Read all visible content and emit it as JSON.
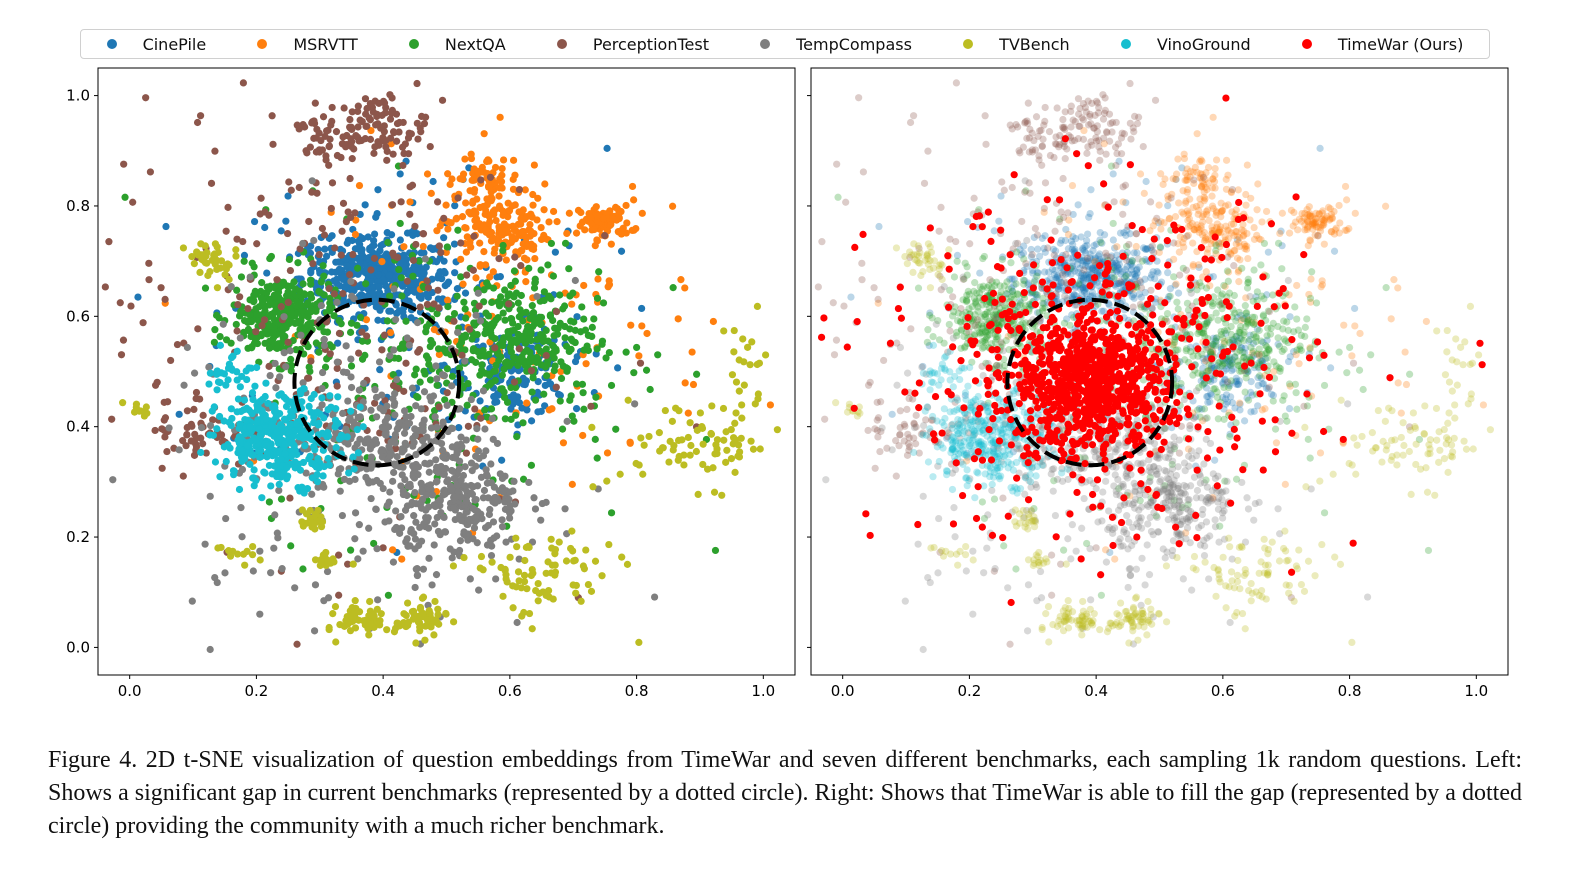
{
  "legend": [
    "CinePile",
    "MSRVTT",
    "NextQA",
    "PerceptionTest",
    "TempCompass",
    "TVBench",
    "VinoGround",
    "TimeWar (Ours)"
  ],
  "caption": "Figure 4.  2D t-SNE visualization of question embeddings from TimeWar and seven different benchmarks, each sampling 1k random questions. Left: Shows a significant gap in current benchmarks (represented by a dotted circle). Right: Shows that TimeWar is able to fill the gap (represented by a dotted circle) providing the community with a much richer benchmark.",
  "chart_data": [
    {
      "type": "scatter",
      "panel": "left",
      "xlim": [
        -0.05,
        1.05
      ],
      "ylim": [
        -0.05,
        1.05
      ],
      "xticks": [
        "0.0",
        "0.2",
        "0.4",
        "0.6",
        "0.8",
        "1.0"
      ],
      "yticks": [
        "0.0",
        "0.2",
        "0.4",
        "0.6",
        "0.8",
        "1.0"
      ],
      "grid": false,
      "legend_placement": "top",
      "annotation": {
        "shape": "dashed circle",
        "center": [
          0.39,
          0.48
        ],
        "radius_x": 0.13,
        "radius_y": 0.15,
        "color": "#000000"
      },
      "series_shown": [
        "CinePile",
        "MSRVTT",
        "NextQA",
        "PerceptionTest",
        "TempCompass",
        "TVBench",
        "VinoGround"
      ]
    },
    {
      "type": "scatter",
      "panel": "right",
      "xlim": [
        -0.05,
        1.05
      ],
      "ylim": [
        -0.05,
        1.05
      ],
      "xticks": [
        "0.0",
        "0.2",
        "0.4",
        "0.6",
        "0.8",
        "1.0"
      ],
      "yticks": [],
      "grid": false,
      "annotation": {
        "shape": "dashed circle",
        "center": [
          0.39,
          0.48
        ],
        "radius_x": 0.13,
        "radius_y": 0.15,
        "color": "#000000"
      },
      "series_shown": [
        "CinePile",
        "MSRVTT",
        "NextQA",
        "PerceptionTest",
        "TempCompass",
        "TVBench",
        "VinoGround",
        "TimeWar (Ours)"
      ],
      "faded_series_opacity": 0.3
    }
  ],
  "series": [
    {
      "name": "CinePile",
      "color": "#1f77b4",
      "clusters": [
        [
          0.39,
          0.67,
          0.06,
          0.035,
          420
        ],
        [
          0.61,
          0.5,
          0.04,
          0.04,
          150
        ],
        [
          0.45,
          0.6,
          0.15,
          0.15,
          150
        ]
      ]
    },
    {
      "name": "MSRVTT",
      "color": "#ff7f0e",
      "clusters": [
        [
          0.58,
          0.76,
          0.04,
          0.03,
          150
        ],
        [
          0.75,
          0.77,
          0.02,
          0.015,
          80
        ],
        [
          0.56,
          0.85,
          0.03,
          0.02,
          60
        ],
        [
          0.62,
          0.6,
          0.15,
          0.15,
          150
        ]
      ]
    },
    {
      "name": "NextQA",
      "color": "#2ca02c",
      "clusters": [
        [
          0.24,
          0.6,
          0.04,
          0.04,
          300
        ],
        [
          0.6,
          0.56,
          0.07,
          0.06,
          300
        ],
        [
          0.5,
          0.5,
          0.15,
          0.15,
          200
        ]
      ]
    },
    {
      "name": "PerceptionTest",
      "color": "#8c564b",
      "clusters": [
        [
          0.39,
          0.94,
          0.04,
          0.03,
          100
        ],
        [
          0.3,
          0.92,
          0.02,
          0.02,
          30
        ],
        [
          0.3,
          0.6,
          0.18,
          0.2,
          250
        ],
        [
          0.1,
          0.4,
          0.03,
          0.04,
          50
        ]
      ]
    },
    {
      "name": "TempCompass",
      "color": "#7f7f7f",
      "clusters": [
        [
          0.4,
          0.38,
          0.07,
          0.04,
          200
        ],
        [
          0.52,
          0.26,
          0.05,
          0.05,
          250
        ],
        [
          0.35,
          0.35,
          0.15,
          0.15,
          250
        ]
      ]
    },
    {
      "name": "TVBench",
      "color": "#bcbd22",
      "clusters": [
        [
          0.9,
          0.37,
          0.07,
          0.04,
          80
        ],
        [
          0.65,
          0.13,
          0.06,
          0.04,
          80
        ],
        [
          0.97,
          0.5,
          0.02,
          0.05,
          20
        ],
        [
          0.29,
          0.23,
          0.01,
          0.01,
          20
        ],
        [
          0.31,
          0.16,
          0.01,
          0.01,
          15
        ],
        [
          0.37,
          0.05,
          0.02,
          0.015,
          60
        ],
        [
          0.46,
          0.05,
          0.02,
          0.015,
          60
        ],
        [
          0.13,
          0.7,
          0.02,
          0.02,
          40
        ],
        [
          0.01,
          0.43,
          0.01,
          0.01,
          10
        ],
        [
          0.16,
          0.17,
          0.02,
          0.01,
          12
        ]
      ]
    },
    {
      "name": "VinoGround",
      "color": "#17becf",
      "clusters": [
        [
          0.24,
          0.38,
          0.05,
          0.04,
          350
        ],
        [
          0.16,
          0.5,
          0.02,
          0.02,
          30
        ]
      ]
    },
    {
      "name": "TimeWar (Ours)",
      "color": "#ff0000",
      "right_only": true,
      "clusters": [
        [
          0.39,
          0.48,
          0.06,
          0.06,
          700
        ],
        [
          0.4,
          0.5,
          0.17,
          0.15,
          400
        ]
      ]
    }
  ]
}
